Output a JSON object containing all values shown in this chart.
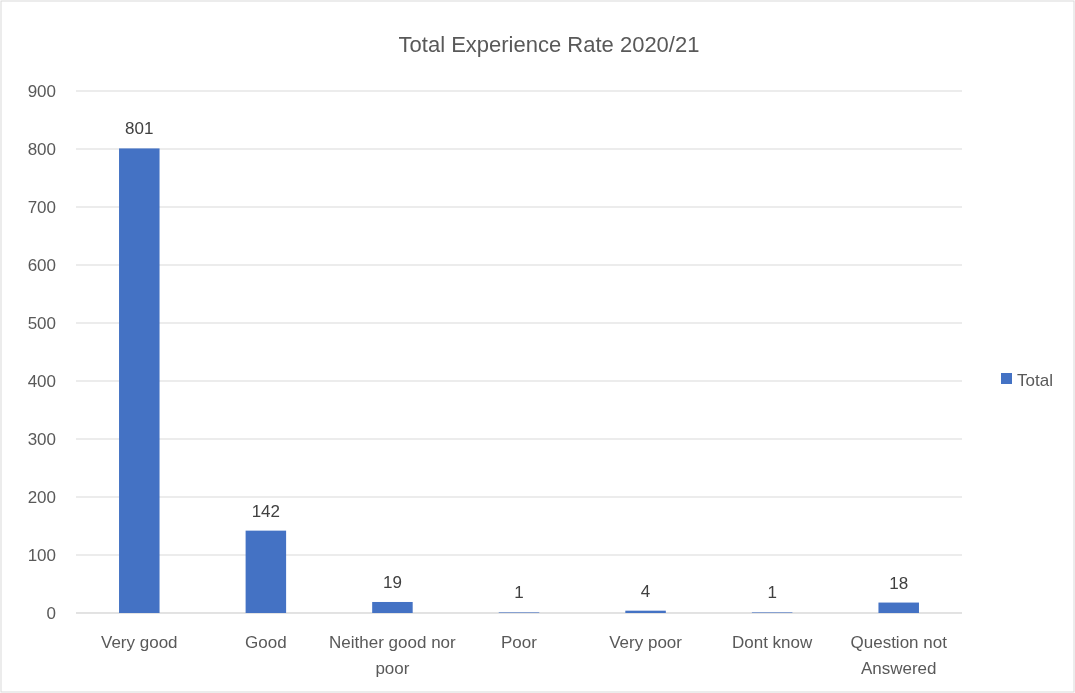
{
  "chart_data": {
    "type": "bar",
    "title": "Total Experience Rate 2020/21",
    "categories": [
      "Very good",
      "Good",
      "Neither good nor poor",
      "Poor",
      "Very poor",
      "Dont know",
      "Question not Answered"
    ],
    "series": [
      {
        "name": "Total",
        "color": "#4472c4",
        "values": [
          801,
          142,
          19,
          1,
          4,
          1,
          18
        ]
      }
    ],
    "ylim": [
      0,
      900
    ],
    "yticks": [
      0,
      100,
      200,
      300,
      400,
      500,
      600,
      700,
      800,
      900
    ],
    "grid": "y",
    "legend": "right",
    "data_labels": true
  }
}
